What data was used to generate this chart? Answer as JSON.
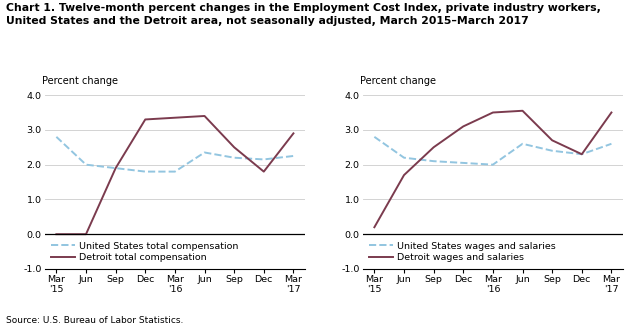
{
  "title": "Chart 1. Twelve-month percent changes in the Employment Cost Index, private industry workers,\nUnited States and the Detroit area, not seasonally adjusted, March 2015–March 2017",
  "source": "Source: U.S. Bureau of Labor Statistics.",
  "x_labels": [
    "Mar\n'15",
    "Jun",
    "Sep",
    "Dec",
    "Mar\n'16",
    "Jun",
    "Sep",
    "Dec",
    "Mar\n'17"
  ],
  "ylabel": "Percent change",
  "ylim": [
    -1.0,
    4.0
  ],
  "yticks": [
    -1.0,
    0.0,
    1.0,
    2.0,
    3.0,
    4.0
  ],
  "left_us": [
    2.8,
    2.0,
    1.9,
    1.8,
    1.8,
    2.35,
    2.2,
    2.15,
    2.25
  ],
  "left_detroit": [
    0.0,
    0.0,
    1.9,
    3.3,
    3.35,
    3.4,
    2.5,
    1.8,
    2.9
  ],
  "left_legend1": "United States total compensation",
  "left_legend2": "Detroit total compensation",
  "right_us": [
    2.8,
    2.2,
    2.1,
    2.05,
    2.0,
    2.6,
    2.4,
    2.3,
    2.6
  ],
  "right_detroit": [
    0.2,
    1.7,
    2.5,
    3.1,
    3.5,
    3.55,
    2.7,
    2.3,
    3.5
  ],
  "right_legend1": "United States wages and salaries",
  "right_legend2": "Detroit wages and salaries",
  "us_color": "#92C5E0",
  "detroit_color": "#7B3B4E",
  "linewidth": 1.4,
  "title_fontsize": 7.8,
  "label_fontsize": 7.0,
  "tick_fontsize": 6.8,
  "legend_fontsize": 6.8,
  "source_fontsize": 6.5
}
